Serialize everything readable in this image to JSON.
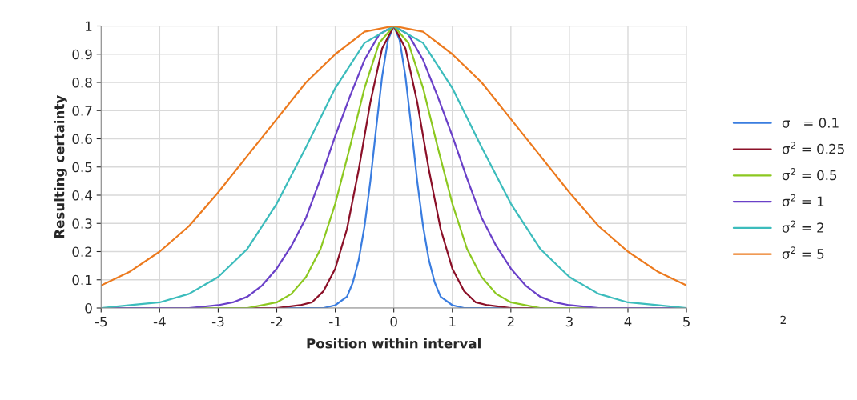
{
  "chart_data": {
    "type": "line",
    "xlabel": "Position within interval",
    "ylabel": "Resulting certainty",
    "xlim": [
      -5,
      5
    ],
    "ylim": [
      0,
      1
    ],
    "xticks": [
      -5,
      -4,
      -3,
      -2,
      -1,
      0,
      1,
      2,
      3,
      4,
      5
    ],
    "yticks": [
      0,
      0.1,
      0.2,
      0.3,
      0.4,
      0.5,
      0.6,
      0.7,
      0.8,
      0.9,
      1
    ],
    "grid": true,
    "legend": "right",
    "marker": "none",
    "line_style": "solid",
    "annotations": [
      "2"
    ],
    "series": [
      {
        "name": "σ   = 0.1",
        "color": "#3a7de0",
        "x": [
          -5,
          -1.2,
          -1,
          -0.8,
          -0.7,
          -0.6,
          -0.5,
          -0.4,
          -0.3,
          -0.2,
          -0.1,
          0,
          0.1,
          0.2,
          0.3,
          0.4,
          0.5,
          0.6,
          0.7,
          0.8,
          1,
          1.2,
          5
        ],
        "values": [
          0,
          0,
          0.01,
          0.04,
          0.09,
          0.17,
          0.29,
          0.45,
          0.64,
          0.82,
          0.95,
          1,
          0.95,
          0.82,
          0.64,
          0.45,
          0.29,
          0.17,
          0.09,
          0.04,
          0.01,
          0,
          0
        ]
      },
      {
        "name": "σ$^{2}$ = 0.25",
        "color": "#8b1028",
        "x": [
          -5,
          -2,
          -1.6,
          -1.4,
          -1.2,
          -1,
          -0.8,
          -0.6,
          -0.4,
          -0.2,
          0,
          0.2,
          0.4,
          0.6,
          0.8,
          1,
          1.2,
          1.4,
          1.6,
          2,
          5
        ],
        "values": [
          0,
          0,
          0.01,
          0.02,
          0.06,
          0.14,
          0.28,
          0.49,
          0.73,
          0.92,
          1,
          0.92,
          0.73,
          0.49,
          0.28,
          0.14,
          0.06,
          0.02,
          0.01,
          0,
          0
        ]
      },
      {
        "name": "σ$^{2}$ = 0.5",
        "color": "#8cc820",
        "x": [
          -5,
          -3,
          -2.5,
          -2,
          -1.75,
          -1.5,
          -1.25,
          -1,
          -0.75,
          -0.5,
          -0.25,
          0,
          0.25,
          0.5,
          0.75,
          1,
          1.25,
          1.5,
          1.75,
          2,
          2.5,
          3,
          5
        ],
        "values": [
          0,
          0,
          0,
          0.02,
          0.05,
          0.11,
          0.21,
          0.37,
          0.57,
          0.78,
          0.94,
          1,
          0.94,
          0.78,
          0.57,
          0.37,
          0.21,
          0.11,
          0.05,
          0.02,
          0,
          0,
          0
        ]
      },
      {
        "name": "σ$^{2}$ = 1",
        "color": "#6a40c8",
        "x": [
          -5,
          -3.5,
          -3,
          -2.75,
          -2.5,
          -2.25,
          -2,
          -1.75,
          -1.5,
          -1.25,
          -1,
          -0.75,
          -0.5,
          -0.25,
          0,
          0.25,
          0.5,
          0.75,
          1,
          1.25,
          1.5,
          1.75,
          2,
          2.25,
          2.5,
          2.75,
          3,
          3.5,
          5
        ],
        "values": [
          0,
          0,
          0.01,
          0.02,
          0.04,
          0.08,
          0.14,
          0.22,
          0.32,
          0.46,
          0.61,
          0.75,
          0.88,
          0.97,
          1,
          0.97,
          0.88,
          0.75,
          0.61,
          0.46,
          0.32,
          0.22,
          0.14,
          0.08,
          0.04,
          0.02,
          0.01,
          0,
          0
        ]
      },
      {
        "name": "σ$^{2}$ = 2",
        "color": "#3cbcbc",
        "x": [
          -5,
          -4.5,
          -4,
          -3.5,
          -3,
          -2.5,
          -2,
          -1.5,
          -1,
          -0.5,
          0,
          0.5,
          1,
          1.5,
          2,
          2.5,
          3,
          3.5,
          4,
          4.5,
          5
        ],
        "values": [
          0,
          0.01,
          0.02,
          0.05,
          0.11,
          0.21,
          0.37,
          0.57,
          0.78,
          0.94,
          1,
          0.94,
          0.78,
          0.57,
          0.37,
          0.21,
          0.11,
          0.05,
          0.02,
          0.01,
          0
        ]
      },
      {
        "name": "σ$^{2}$ = 5",
        "color": "#ec7a1e",
        "x": [
          -5,
          -4.5,
          -4,
          -3.5,
          -3,
          -2.5,
          -2,
          -1.5,
          -1,
          -0.5,
          0,
          0.5,
          1,
          1.5,
          2,
          2.5,
          3,
          3.5,
          4,
          4.5,
          5
        ],
        "values": [
          0.08,
          0.13,
          0.2,
          0.29,
          0.41,
          0.54,
          0.67,
          0.8,
          0.9,
          0.98,
          1,
          0.98,
          0.9,
          0.8,
          0.67,
          0.54,
          0.41,
          0.29,
          0.2,
          0.13,
          0.08
        ]
      }
    ]
  }
}
